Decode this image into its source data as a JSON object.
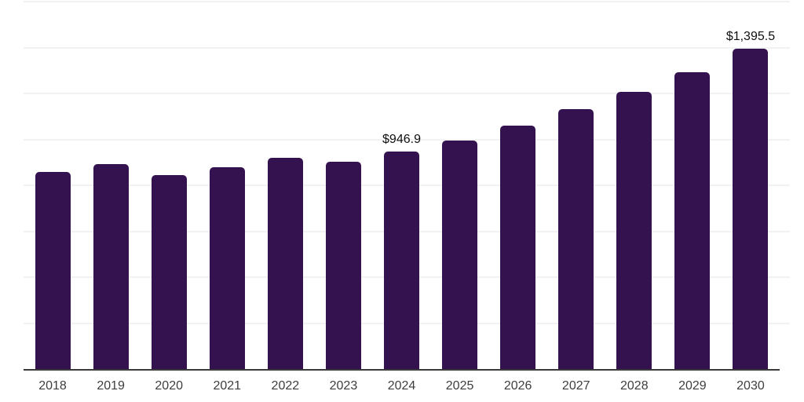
{
  "chart_data": {
    "type": "bar",
    "title": "",
    "xlabel": "",
    "ylabel": "",
    "categories": [
      "2018",
      "2019",
      "2020",
      "2021",
      "2022",
      "2023",
      "2024",
      "2025",
      "2026",
      "2027",
      "2028",
      "2029",
      "2030"
    ],
    "values": [
      858,
      892,
      845,
      879,
      920,
      903,
      946.9,
      995,
      1059,
      1131,
      1206,
      1294,
      1395.5
    ],
    "value_labels_shown": {
      "2024": "$946.9",
      "2030": "$1,395.5"
    },
    "value_prefix": "$",
    "ylim": [
      0,
      1600
    ],
    "gridline_step": 200,
    "grid": "horizontal-only",
    "y_tick_labels": "none",
    "legend_position": "none",
    "colors": {
      "bar": "#34114f",
      "gridline": "#f2f2f2",
      "axis_line": "#3a3a3a",
      "tick_text": "#3e3e3e",
      "value_label_text": "#101010",
      "background": "#ffffff"
    }
  }
}
